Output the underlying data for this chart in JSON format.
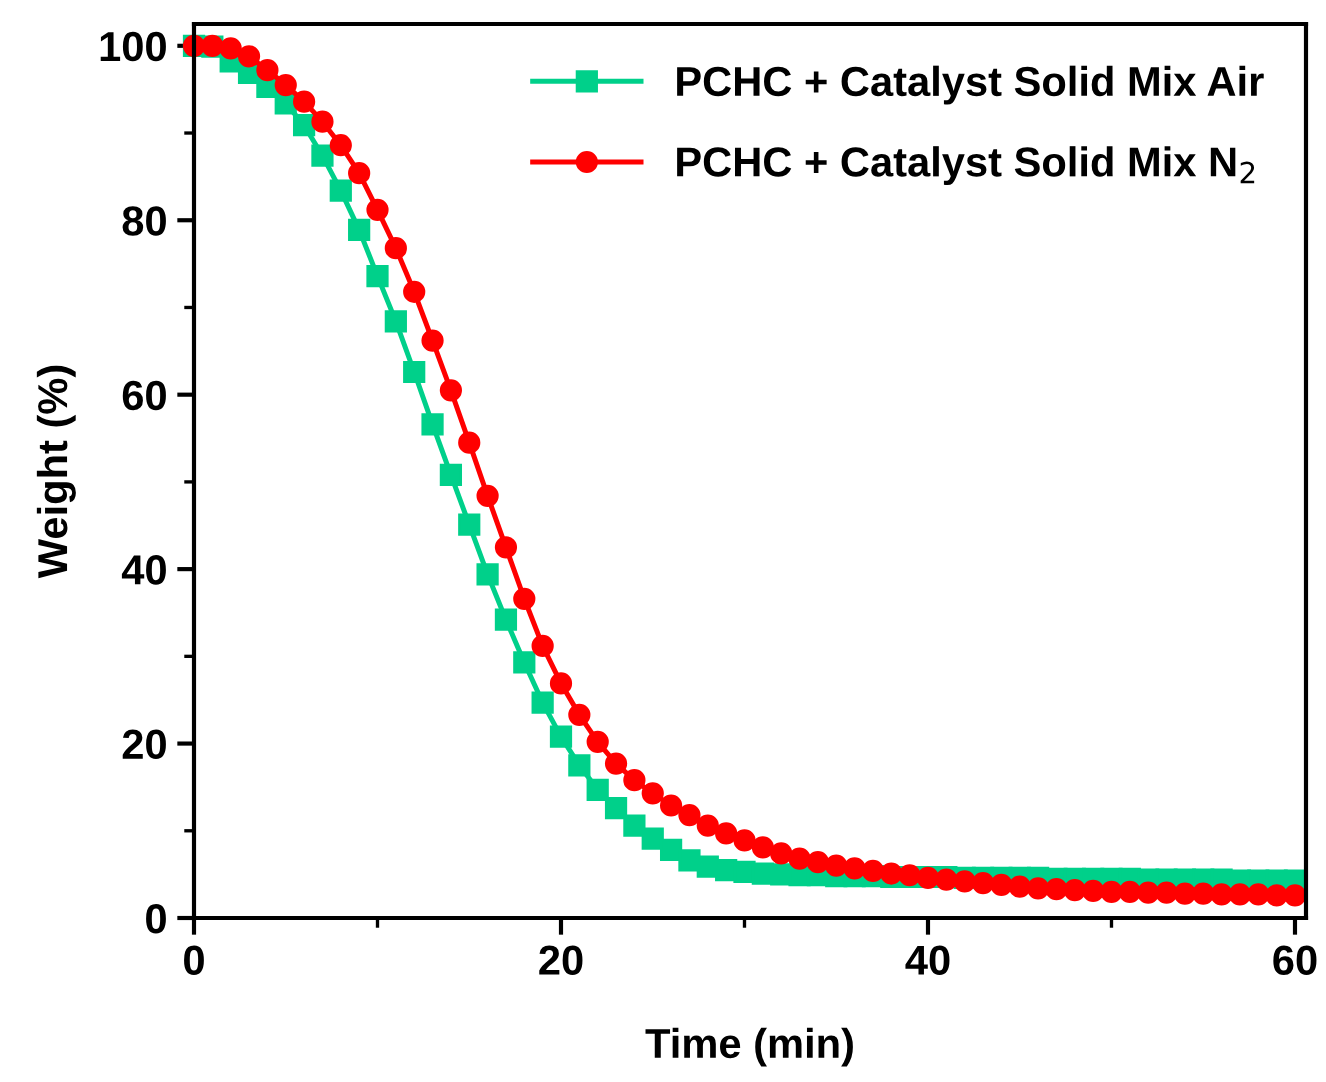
{
  "chart_data": {
    "type": "line",
    "xlabel": "Time (min)",
    "ylabel": "Weight (%)",
    "xlim": [
      0,
      60.6
    ],
    "ylim": [
      0,
      102.5
    ],
    "xticks": [
      0,
      20,
      40,
      60
    ],
    "yticks": [
      0,
      20,
      40,
      60,
      80,
      100
    ],
    "grid": false,
    "legend": "top right",
    "x": [
      0,
      1,
      2,
      3,
      4,
      5,
      6,
      7,
      8,
      9,
      10,
      11,
      12,
      13,
      14,
      15,
      16,
      17,
      18,
      19,
      20,
      21,
      22,
      23,
      24,
      25,
      26,
      27,
      28,
      29,
      30,
      31,
      32,
      33,
      34,
      35,
      36,
      37,
      38,
      39,
      40,
      41,
      42,
      43,
      44,
      45,
      46,
      47,
      48,
      49,
      50,
      51,
      52,
      53,
      54,
      55,
      56,
      57,
      58,
      59,
      60
    ],
    "series": [
      {
        "name": "PCHC + Catalyst Solid Mix Air",
        "color": "#00d08a",
        "marker": "square",
        "values": [
          100,
          99.9,
          98.2,
          96.9,
          95.3,
          93.4,
          90.9,
          87.4,
          83.4,
          78.9,
          73.6,
          68.4,
          62.6,
          56.6,
          50.8,
          45.1,
          39.4,
          34.2,
          29.3,
          24.7,
          20.8,
          17.5,
          14.7,
          12.6,
          10.6,
          9.1,
          7.8,
          6.6,
          5.9,
          5.5,
          5.3,
          5.1,
          5.0,
          4.9,
          4.9,
          4.8,
          4.8,
          4.8,
          4.7,
          4.7,
          4.7,
          4.7,
          4.6,
          4.6,
          4.6,
          4.6,
          4.6,
          4.5,
          4.5,
          4.5,
          4.5,
          4.5,
          4.4,
          4.4,
          4.4,
          4.4,
          4.4,
          4.3,
          4.3,
          4.3,
          4.3
        ]
      },
      {
        "name": "PCHC + Catalyst Solid Mix N$_{2}$",
        "color": "#ff0000",
        "marker": "circle",
        "values": [
          100,
          100,
          99.7,
          98.8,
          97.2,
          95.5,
          93.6,
          91.3,
          88.6,
          85.4,
          81.2,
          76.8,
          71.8,
          66.2,
          60.5,
          54.5,
          48.4,
          42.5,
          36.6,
          31.2,
          26.9,
          23.3,
          20.2,
          17.7,
          15.8,
          14.3,
          12.9,
          11.8,
          10.6,
          9.7,
          8.9,
          8.1,
          7.4,
          6.8,
          6.4,
          6.0,
          5.7,
          5.4,
          5.1,
          4.9,
          4.6,
          4.4,
          4.2,
          4.0,
          3.8,
          3.6,
          3.4,
          3.3,
          3.2,
          3.1,
          3.0,
          3.0,
          2.9,
          2.9,
          2.8,
          2.8,
          2.7,
          2.7,
          2.7,
          2.6,
          2.6
        ]
      }
    ]
  }
}
